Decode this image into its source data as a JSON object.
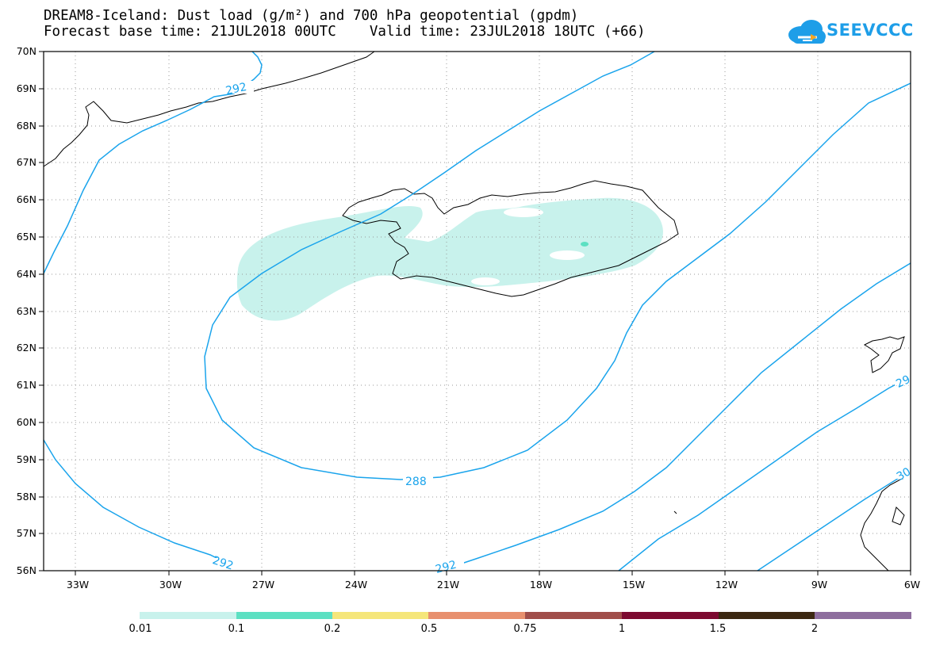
{
  "header": {
    "title_line1": "DREAM8-Iceland: Dust load (g/m²) and 700 hPa geopotential (gpdm)",
    "title_line2": "Forecast base time: 21JUL2018 00UTC    Valid time: 23JUL2018 18UTC (+66)"
  },
  "logo": {
    "text": "SEEVCCC",
    "icon": "cloud-icon",
    "color": "#1e9ee8"
  },
  "map": {
    "lat_labels": [
      "70N",
      "69N",
      "68N",
      "67N",
      "66N",
      "65N",
      "64N",
      "63N",
      "62N",
      "61N",
      "60N",
      "59N",
      "58N",
      "57N",
      "56N"
    ],
    "lon_labels": [
      "33W",
      "30W",
      "27W",
      "24W",
      "21W",
      "18W",
      "15W",
      "12W",
      "9W",
      "6W"
    ],
    "contour_labels": [
      "292",
      "288",
      "292",
      "292",
      "29",
      "30"
    ],
    "contour_color": "#1aa4ec",
    "dust_color": "#c8f2ec"
  },
  "colorbar": {
    "ticks": [
      "0.01",
      "0.1",
      "0.2",
      "0.5",
      "0.75",
      "1",
      "1.5",
      "2"
    ],
    "colors": [
      "#c8f2ec",
      "#5ce0c2",
      "#f5e67a",
      "#e8906e",
      "#a04e4a",
      "#7c0a30",
      "#3c2812",
      "#8e6e9e"
    ]
  }
}
